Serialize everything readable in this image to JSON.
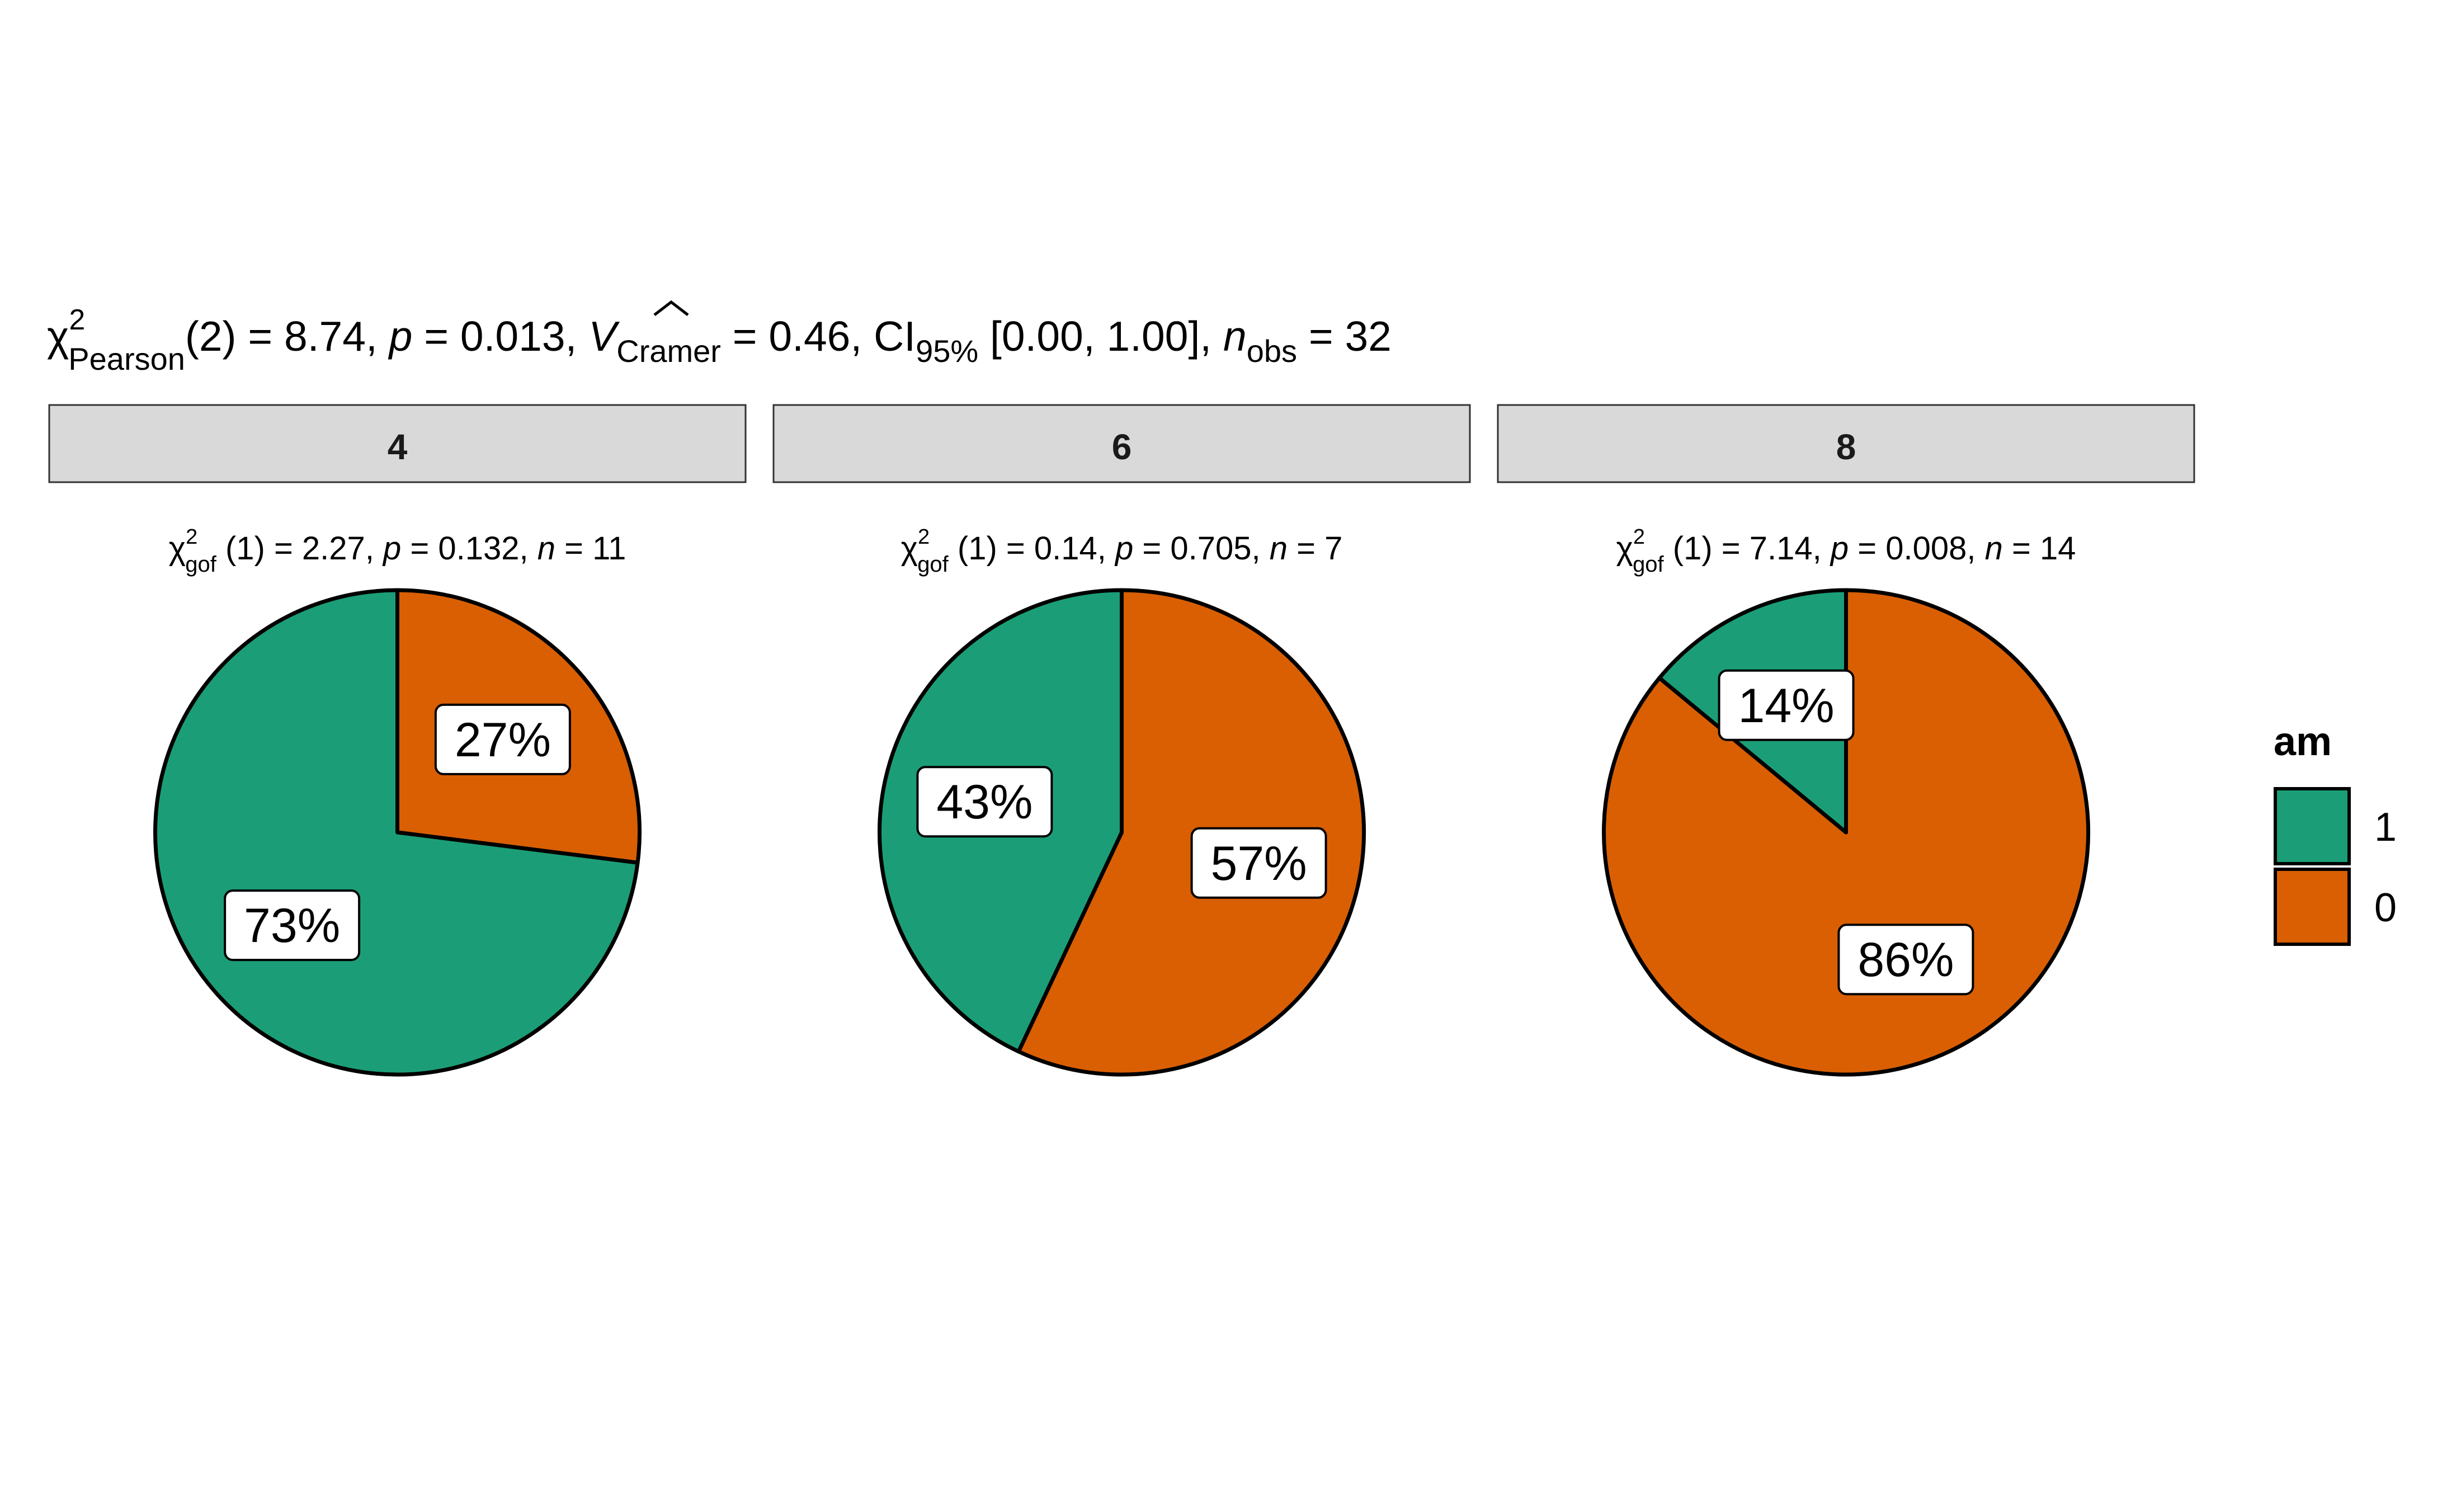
{
  "title": {
    "chi_symbol": "χ",
    "chi_superscript": "2",
    "chi_subscript": "Pearson",
    "df": "(2) = 8.74, ",
    "p_symbol": "p",
    "p_value": " = 0.013, ",
    "v_symbol": "V",
    "v_subscript": "Cramer",
    "v_value": " = 0.46, CI",
    "ci_subscript": "95%",
    "ci_value": " [0.00, 1.00], ",
    "n_symbol": "n",
    "n_subscript": "obs",
    "n_value": " = 32"
  },
  "legend": {
    "title": "am",
    "items": [
      {
        "label": "1",
        "color": "#1B9E77"
      },
      {
        "label": "0",
        "color": "#D95F02"
      }
    ]
  },
  "chart_data": [
    {
      "type": "pie",
      "facet": "4",
      "subtitle": {
        "chi": "χ",
        "sup": "2",
        "sub": "gof",
        "df": "(1)",
        "stat": " = 2.27, ",
        "p": "p",
        "p_value": " = 0.132, ",
        "n": "n",
        "n_value": " = 11"
      },
      "slices": [
        {
          "category": "1",
          "value": 73,
          "label": "73%",
          "color": "#1B9E77"
        },
        {
          "category": "0",
          "value": 27,
          "label": "27%",
          "color": "#D95F02"
        }
      ]
    },
    {
      "type": "pie",
      "facet": "6",
      "subtitle": {
        "chi": "χ",
        "sup": "2",
        "sub": "gof",
        "df": "(1)",
        "stat": " = 0.14, ",
        "p": "p",
        "p_value": " = 0.705, ",
        "n": "n",
        "n_value": " = 7"
      },
      "slices": [
        {
          "category": "1",
          "value": 43,
          "label": "43%",
          "color": "#1B9E77"
        },
        {
          "category": "0",
          "value": 57,
          "label": "57%",
          "color": "#D95F02"
        }
      ]
    },
    {
      "type": "pie",
      "facet": "8",
      "subtitle": {
        "chi": "χ",
        "sup": "2",
        "sub": "gof",
        "df": "(1)",
        "stat": " = 7.14, ",
        "p": "p",
        "p_value": " = 0.008, ",
        "n": "n",
        "n_value": " = 14"
      },
      "slices": [
        {
          "category": "1",
          "value": 14,
          "label": "14%",
          "color": "#1B9E77"
        },
        {
          "category": "0",
          "value": 86,
          "label": "86%",
          "color": "#D95F02"
        }
      ]
    }
  ]
}
